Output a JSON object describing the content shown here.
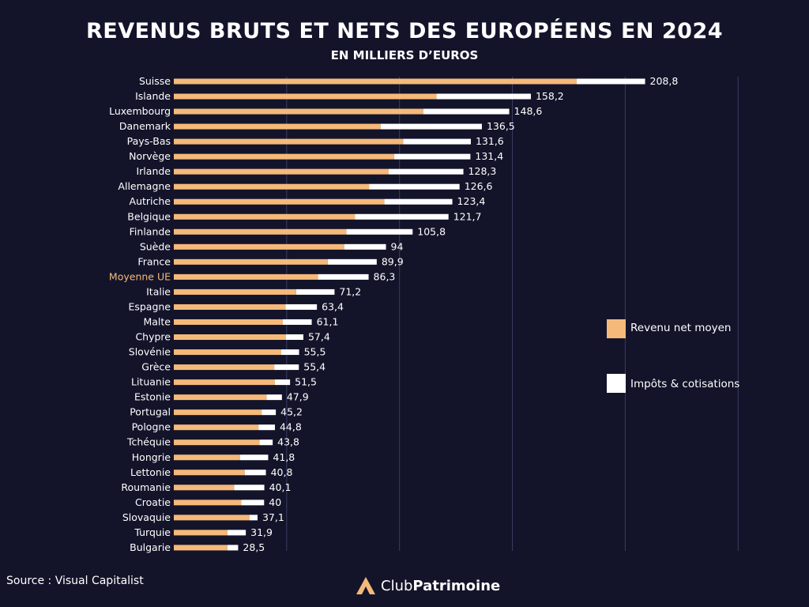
{
  "brand": {
    "name_light": "Club",
    "name_bold": "Patrimoine",
    "logo_icon": "triangle-logo-icon"
  },
  "source": "Source : Visual Capitalist",
  "colors": {
    "background": "#13142a",
    "net": "#f5b97a",
    "taxes": "#ffffff",
    "grid": "#3b3d63",
    "highlight": "#f5b97a"
  },
  "chart_data": {
    "type": "bar",
    "orientation": "horizontal",
    "stacked": true,
    "title": "REVENUS BRUTS ET NETS DES EUROPÉENS EN 2024",
    "subtitle": "EN MILLIERS D’EUROS",
    "xlim": [
      0,
      250
    ],
    "grid": true,
    "legend_position": "right",
    "highlight_category": "Moyenne UE",
    "categories": [
      "Suisse",
      "Islande",
      "Luxembourg",
      "Danemark",
      "Pays-Bas",
      "Norvège",
      "Irlande",
      "Allemagne",
      "Autriche",
      "Belgique",
      "Finlande",
      "Suède",
      "France",
      "Moyenne UE",
      "Italie",
      "Espagne",
      "Malte",
      "Chypre",
      "Slovénie",
      "Grèce",
      "Lituanie",
      "Estonie",
      "Portugal",
      "Pologne",
      "Tchéquie",
      "Hongrie",
      "Lettonie",
      "Roumanie",
      "Croatie",
      "Slovaquie",
      "Turquie",
      "Bulgarie"
    ],
    "totals": [
      208.8,
      158.2,
      148.6,
      136.5,
      131.6,
      131.4,
      128.3,
      126.6,
      123.4,
      121.7,
      105.8,
      94,
      89.9,
      86.3,
      71.2,
      63.4,
      61.1,
      57.4,
      55.5,
      55.4,
      51.5,
      47.9,
      45.2,
      44.8,
      43.8,
      41.8,
      40.8,
      40.1,
      40,
      37.1,
      31.9,
      28.5
    ],
    "total_labels": [
      "208,8",
      "158,2",
      "148,6",
      "136,5",
      "131,6",
      "131,4",
      "128,3",
      "126,6",
      "123,4",
      "121,7",
      "105,8",
      "94",
      "89,9",
      "86,3",
      "71,2",
      "63,4",
      "61,1",
      "57,4",
      "55,5",
      "55,4",
      "51,5",
      "47,9",
      "45,2",
      "44,8",
      "43,8",
      "41,8",
      "40,8",
      "40,1",
      "40",
      "37,1",
      "31,9",
      "28,5"
    ],
    "series": [
      {
        "name": "Revenu net moyen",
        "key": "net",
        "color": "#f5b97a",
        "values": [
          178.5,
          116.4,
          110.5,
          91.6,
          101.6,
          97.6,
          95.2,
          86.5,
          93.3,
          80.2,
          76.5,
          75.5,
          68.2,
          63.9,
          54.2,
          49.5,
          48.3,
          49.7,
          47.6,
          44.5,
          44.8,
          41.1,
          38.9,
          37.5,
          38,
          29.4,
          31.4,
          26.7,
          29.9,
          33.6,
          23.8,
          23.7
        ]
      },
      {
        "name": "Impôts & cotisations",
        "key": "taxes",
        "color": "#ffffff",
        "values": [
          30.3,
          41.8,
          38.1,
          44.9,
          30,
          33.8,
          33.1,
          40.1,
          30.1,
          41.5,
          29.3,
          18.5,
          21.7,
          22.4,
          17,
          13.9,
          12.8,
          7.7,
          7.9,
          10.9,
          6.7,
          6.8,
          6.3,
          7.3,
          5.8,
          12.4,
          9.4,
          13.4,
          10.1,
          3.5,
          8.1,
          4.8
        ]
      }
    ]
  }
}
